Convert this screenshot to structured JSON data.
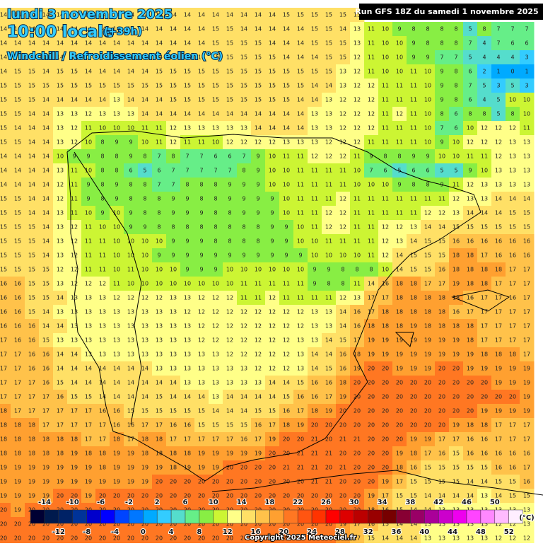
{
  "header": {
    "date": "lundi 3 novembre 2025",
    "time": "10:00 locale",
    "offset": "(+39h)",
    "subtitle": "Windchill / Refroidissement éolien (°C)",
    "run": "Run GFS 18Z du samedi 1 novembre 2025"
  },
  "grid": {
    "values": [
      [
        14,
        14,
        14,
        14,
        14,
        14,
        14,
        14,
        14,
        14,
        14,
        14,
        14,
        14,
        14,
        14,
        14,
        14,
        14,
        14,
        15,
        15,
        15,
        15,
        15,
        15,
        null,
        null,
        null,
        null,
        null,
        null,
        null,
        null,
        null,
        null,
        null,
        null
      ],
      [
        14,
        14,
        14,
        14,
        14,
        14,
        14,
        14,
        14,
        14,
        14,
        14,
        14,
        14,
        14,
        15,
        15,
        14,
        14,
        14,
        14,
        14,
        15,
        15,
        14,
        13,
        11,
        10,
        9,
        8,
        8,
        8,
        8,
        5,
        8,
        7,
        7,
        7
      ],
      [
        14,
        14,
        14,
        14,
        14,
        14,
        14,
        14,
        14,
        14,
        14,
        14,
        14,
        14,
        14,
        15,
        15,
        15,
        15,
        14,
        14,
        14,
        15,
        15,
        15,
        13,
        11,
        10,
        10,
        9,
        8,
        8,
        8,
        7,
        4,
        7,
        6,
        6
      ],
      [
        14,
        14,
        14,
        14,
        14,
        14,
        14,
        14,
        14,
        14,
        14,
        14,
        14,
        14,
        14,
        15,
        15,
        15,
        15,
        15,
        14,
        14,
        14,
        15,
        15,
        12,
        11,
        10,
        10,
        9,
        9,
        7,
        7,
        5,
        4,
        4,
        4,
        3
      ],
      [
        14,
        15,
        15,
        14,
        15,
        15,
        14,
        14,
        14,
        14,
        14,
        15,
        15,
        15,
        15,
        15,
        15,
        15,
        15,
        15,
        15,
        15,
        15,
        15,
        13,
        12,
        11,
        10,
        10,
        11,
        10,
        9,
        8,
        6,
        2,
        1,
        0,
        1
      ],
      [
        15,
        15,
        15,
        15,
        15,
        15,
        15,
        15,
        15,
        15,
        15,
        15,
        15,
        15,
        15,
        15,
        15,
        15,
        15,
        15,
        15,
        15,
        14,
        14,
        13,
        12,
        12,
        11,
        11,
        11,
        10,
        9,
        8,
        7,
        5,
        3,
        5,
        3
      ],
      [
        15,
        15,
        15,
        14,
        14,
        14,
        14,
        14,
        13,
        14,
        14,
        14,
        15,
        15,
        15,
        15,
        15,
        15,
        15,
        15,
        15,
        14,
        14,
        13,
        12,
        12,
        12,
        11,
        11,
        11,
        10,
        9,
        8,
        6,
        4,
        5,
        10,
        10
      ],
      [
        15,
        15,
        14,
        14,
        13,
        13,
        12,
        13,
        13,
        13,
        14,
        14,
        14,
        14,
        14,
        14,
        14,
        14,
        14,
        14,
        14,
        14,
        13,
        13,
        12,
        12,
        12,
        11,
        12,
        11,
        10,
        8,
        6,
        8,
        8,
        5,
        8,
        10
      ],
      [
        15,
        14,
        14,
        14,
        13,
        12,
        11,
        10,
        10,
        10,
        11,
        11,
        12,
        13,
        13,
        13,
        13,
        13,
        14,
        14,
        14,
        14,
        13,
        13,
        12,
        12,
        12,
        11,
        11,
        11,
        10,
        7,
        6,
        10,
        12,
        12,
        12,
        11
      ],
      [
        15,
        15,
        14,
        14,
        13,
        12,
        10,
        8,
        9,
        9,
        10,
        11,
        12,
        11,
        11,
        10,
        12,
        12,
        12,
        12,
        13,
        13,
        13,
        12,
        12,
        12,
        11,
        11,
        11,
        11,
        10,
        9,
        10,
        12,
        12,
        12,
        13,
        13
      ],
      [
        14,
        14,
        14,
        14,
        10,
        9,
        9,
        8,
        8,
        9,
        8,
        7,
        8,
        7,
        7,
        6,
        6,
        7,
        9,
        10,
        11,
        11,
        12,
        12,
        12,
        11,
        9,
        8,
        8,
        9,
        9,
        10,
        10,
        11,
        11,
        12,
        13,
        13
      ],
      [
        14,
        14,
        14,
        14,
        13,
        11,
        10,
        8,
        8,
        6,
        5,
        6,
        7,
        7,
        7,
        7,
        7,
        8,
        9,
        10,
        10,
        11,
        11,
        11,
        11,
        10,
        7,
        6,
        5,
        6,
        6,
        5,
        5,
        9,
        10,
        13,
        13,
        13
      ],
      [
        14,
        14,
        14,
        14,
        12,
        11,
        9,
        8,
        9,
        8,
        8,
        7,
        7,
        8,
        8,
        8,
        9,
        9,
        9,
        10,
        10,
        11,
        11,
        11,
        11,
        10,
        10,
        10,
        9,
        8,
        8,
        9,
        11,
        12,
        13,
        13,
        13,
        13
      ],
      [
        15,
        15,
        14,
        14,
        12,
        11,
        9,
        8,
        9,
        8,
        8,
        8,
        9,
        9,
        8,
        8,
        9,
        9,
        9,
        9,
        10,
        11,
        11,
        11,
        12,
        11,
        11,
        11,
        11,
        11,
        11,
        11,
        12,
        13,
        13,
        14,
        14,
        14
      ],
      [
        15,
        15,
        14,
        14,
        13,
        11,
        10,
        9,
        10,
        9,
        8,
        8,
        9,
        9,
        9,
        8,
        8,
        9,
        9,
        9,
        10,
        11,
        11,
        12,
        12,
        11,
        11,
        11,
        11,
        11,
        12,
        12,
        13,
        14,
        14,
        14,
        15,
        15
      ],
      [
        15,
        15,
        15,
        14,
        13,
        12,
        11,
        10,
        10,
        9,
        9,
        8,
        8,
        8,
        8,
        8,
        8,
        8,
        8,
        9,
        9,
        10,
        11,
        12,
        12,
        11,
        11,
        12,
        12,
        13,
        14,
        14,
        15,
        15,
        15,
        15,
        15,
        15
      ],
      [
        15,
        15,
        15,
        14,
        13,
        12,
        11,
        11,
        10,
        10,
        10,
        10,
        9,
        9,
        9,
        8,
        8,
        8,
        8,
        9,
        9,
        10,
        10,
        11,
        11,
        11,
        11,
        12,
        13,
        14,
        15,
        15,
        16,
        16,
        16,
        16,
        16,
        16
      ],
      [
        15,
        15,
        15,
        14,
        13,
        12,
        11,
        11,
        10,
        10,
        10,
        9,
        9,
        9,
        9,
        9,
        9,
        9,
        9,
        9,
        9,
        9,
        10,
        10,
        10,
        10,
        11,
        12,
        14,
        15,
        15,
        15,
        18,
        18,
        17,
        16,
        16,
        16
      ],
      [
        15,
        15,
        15,
        15,
        12,
        12,
        11,
        11,
        10,
        11,
        10,
        10,
        10,
        9,
        9,
        9,
        10,
        10,
        10,
        10,
        10,
        10,
        9,
        9,
        8,
        8,
        8,
        10,
        14,
        15,
        15,
        16,
        18,
        18,
        18,
        18,
        17,
        17
      ],
      [
        16,
        16,
        15,
        15,
        13,
        12,
        12,
        12,
        11,
        10,
        10,
        10,
        10,
        10,
        10,
        10,
        10,
        11,
        11,
        11,
        11,
        11,
        9,
        8,
        8,
        11,
        14,
        16,
        18,
        18,
        17,
        17,
        19,
        18,
        18,
        17,
        17,
        17
      ],
      [
        16,
        16,
        15,
        15,
        14,
        13,
        13,
        13,
        12,
        12,
        12,
        12,
        13,
        13,
        12,
        12,
        12,
        11,
        11,
        12,
        11,
        11,
        11,
        11,
        12,
        13,
        17,
        17,
        18,
        18,
        18,
        18,
        18,
        16,
        17,
        17,
        16,
        17
      ],
      [
        16,
        16,
        15,
        14,
        13,
        13,
        13,
        13,
        13,
        13,
        13,
        13,
        13,
        12,
        12,
        12,
        12,
        12,
        12,
        12,
        12,
        12,
        13,
        13,
        14,
        16,
        17,
        18,
        18,
        18,
        18,
        18,
        16,
        17,
        17,
        17,
        17,
        17
      ],
      [
        16,
        16,
        16,
        14,
        14,
        13,
        13,
        13,
        13,
        13,
        13,
        13,
        13,
        13,
        12,
        12,
        12,
        12,
        12,
        12,
        12,
        12,
        13,
        13,
        14,
        16,
        18,
        18,
        18,
        19,
        18,
        18,
        18,
        18,
        17,
        17,
        17,
        17
      ],
      [
        17,
        16,
        16,
        15,
        13,
        13,
        13,
        13,
        13,
        13,
        13,
        13,
        13,
        13,
        12,
        12,
        12,
        12,
        12,
        12,
        12,
        13,
        13,
        14,
        15,
        17,
        19,
        19,
        19,
        19,
        19,
        19,
        19,
        18,
        17,
        17,
        17,
        17
      ],
      [
        17,
        17,
        16,
        16,
        14,
        14,
        13,
        13,
        13,
        13,
        13,
        13,
        13,
        13,
        13,
        13,
        12,
        12,
        12,
        12,
        12,
        13,
        14,
        14,
        16,
        18,
        19,
        19,
        19,
        19,
        19,
        19,
        19,
        19,
        18,
        18,
        18,
        17
      ],
      [
        17,
        17,
        16,
        16,
        14,
        14,
        14,
        14,
        14,
        14,
        14,
        13,
        13,
        13,
        13,
        13,
        13,
        13,
        12,
        12,
        12,
        13,
        14,
        15,
        16,
        19,
        20,
        20,
        19,
        19,
        19,
        20,
        20,
        19,
        19,
        19,
        19,
        19
      ],
      [
        17,
        17,
        17,
        16,
        15,
        14,
        14,
        14,
        14,
        14,
        14,
        14,
        14,
        13,
        13,
        13,
        13,
        13,
        13,
        14,
        14,
        15,
        16,
        16,
        18,
        20,
        20,
        20,
        20,
        20,
        20,
        20,
        20,
        20,
        20,
        19,
        19,
        19
      ],
      [
        17,
        17,
        17,
        17,
        16,
        15,
        15,
        14,
        14,
        14,
        14,
        15,
        14,
        14,
        14,
        13,
        14,
        14,
        14,
        14,
        15,
        16,
        16,
        17,
        19,
        20,
        20,
        20,
        20,
        20,
        20,
        20,
        20,
        20,
        20,
        20,
        20,
        19
      ],
      [
        18,
        17,
        17,
        17,
        17,
        17,
        17,
        16,
        16,
        15,
        15,
        15,
        15,
        15,
        15,
        14,
        14,
        14,
        15,
        15,
        16,
        17,
        18,
        19,
        20,
        20,
        20,
        20,
        20,
        20,
        20,
        20,
        20,
        20,
        19,
        19,
        19,
        19
      ],
      [
        18,
        18,
        18,
        17,
        17,
        17,
        17,
        17,
        16,
        16,
        17,
        17,
        16,
        16,
        15,
        15,
        15,
        15,
        16,
        17,
        18,
        19,
        20,
        20,
        20,
        20,
        20,
        20,
        20,
        20,
        20,
        20,
        19,
        18,
        18,
        17,
        17,
        17
      ],
      [
        18,
        18,
        18,
        18,
        18,
        18,
        17,
        17,
        18,
        17,
        18,
        18,
        17,
        17,
        17,
        17,
        17,
        16,
        17,
        19,
        20,
        20,
        21,
        20,
        21,
        21,
        20,
        20,
        20,
        19,
        19,
        17,
        17,
        16,
        16,
        17,
        17,
        17
      ],
      [
        18,
        18,
        18,
        18,
        18,
        19,
        18,
        18,
        19,
        19,
        18,
        18,
        18,
        18,
        19,
        19,
        19,
        19,
        19,
        20,
        20,
        21,
        21,
        21,
        20,
        20,
        20,
        20,
        19,
        18,
        17,
        16,
        15,
        16,
        16,
        16,
        16,
        16
      ],
      [
        19,
        19,
        19,
        19,
        19,
        19,
        19,
        18,
        19,
        19,
        19,
        19,
        18,
        19,
        19,
        19,
        20,
        20,
        20,
        20,
        21,
        21,
        21,
        20,
        21,
        20,
        20,
        20,
        18,
        16,
        15,
        15,
        15,
        15,
        15,
        16,
        16,
        17
      ],
      [
        19,
        19,
        19,
        19,
        19,
        19,
        19,
        19,
        19,
        19,
        19,
        20,
        20,
        20,
        20,
        20,
        20,
        20,
        20,
        20,
        20,
        20,
        21,
        21,
        20,
        20,
        20,
        19,
        17,
        15,
        15,
        15,
        15,
        14,
        14,
        15,
        15,
        16
      ],
      [
        19,
        19,
        19,
        19,
        20,
        20,
        19,
        20,
        20,
        20,
        20,
        20,
        20,
        20,
        20,
        20,
        20,
        20,
        20,
        20,
        20,
        20,
        20,
        20,
        20,
        20,
        19,
        17,
        15,
        15,
        14,
        14,
        14,
        14,
        13,
        14,
        15,
        15
      ],
      [
        20,
        19,
        20,
        20,
        20,
        20,
        20,
        20,
        20,
        20,
        20,
        20,
        20,
        20,
        20,
        20,
        20,
        20,
        20,
        20,
        20,
        20,
        20,
        20,
        20,
        20,
        18,
        16,
        15,
        14,
        14,
        13,
        13,
        13,
        13,
        13,
        13,
        13
      ],
      [
        20,
        20,
        20,
        20,
        20,
        20,
        20,
        20,
        20,
        20,
        20,
        20,
        20,
        20,
        20,
        20,
        20,
        20,
        20,
        20,
        20,
        20,
        20,
        20,
        19,
        17,
        16,
        15,
        14,
        14,
        13,
        13,
        13,
        13,
        13,
        12,
        12,
        13
      ],
      [
        20,
        20,
        20,
        20,
        20,
        20,
        20,
        20,
        20,
        20,
        20,
        20,
        20,
        20,
        20,
        20,
        20,
        20,
        20,
        20,
        20,
        20,
        20,
        20,
        19,
        17,
        15,
        14,
        14,
        14,
        13,
        13,
        13,
        13,
        13,
        12,
        12,
        12
      ]
    ]
  },
  "legend": {
    "thresholds": [
      -14,
      -12,
      -10,
      -8,
      -6,
      -4,
      -2,
      0,
      2,
      4,
      6,
      8,
      10,
      12,
      14,
      16,
      18,
      20,
      22,
      24,
      26,
      28,
      30,
      32,
      34,
      36,
      38,
      40,
      42,
      44,
      46,
      48,
      50,
      52
    ],
    "colors": [
      "#000033",
      "#001a4d",
      "#002266",
      "#003399",
      "#0000cc",
      "#0000ff",
      "#0044ff",
      "#0077ff",
      "#00aaff",
      "#33ccff",
      "#55ddcc",
      "#66ee88",
      "#88ee44",
      "#ccf533",
      "#ffff88",
      "#ffe066",
      "#ffc24a",
      "#ffa030",
      "#ff7722",
      "#ff5511",
      "#ff3300",
      "#ff0000",
      "#dd0000",
      "#bb0000",
      "#990000",
      "#770000",
      "#880033",
      "#990066",
      "#aa0099",
      "#cc00cc",
      "#ee00ee",
      "#ff44ff",
      "#ff88ff",
      "#ffbbff",
      "#ffeeff"
    ],
    "unit": "(°C)"
  },
  "footer": {
    "copyright": "Copyright 2025 Meteociel.fr"
  }
}
